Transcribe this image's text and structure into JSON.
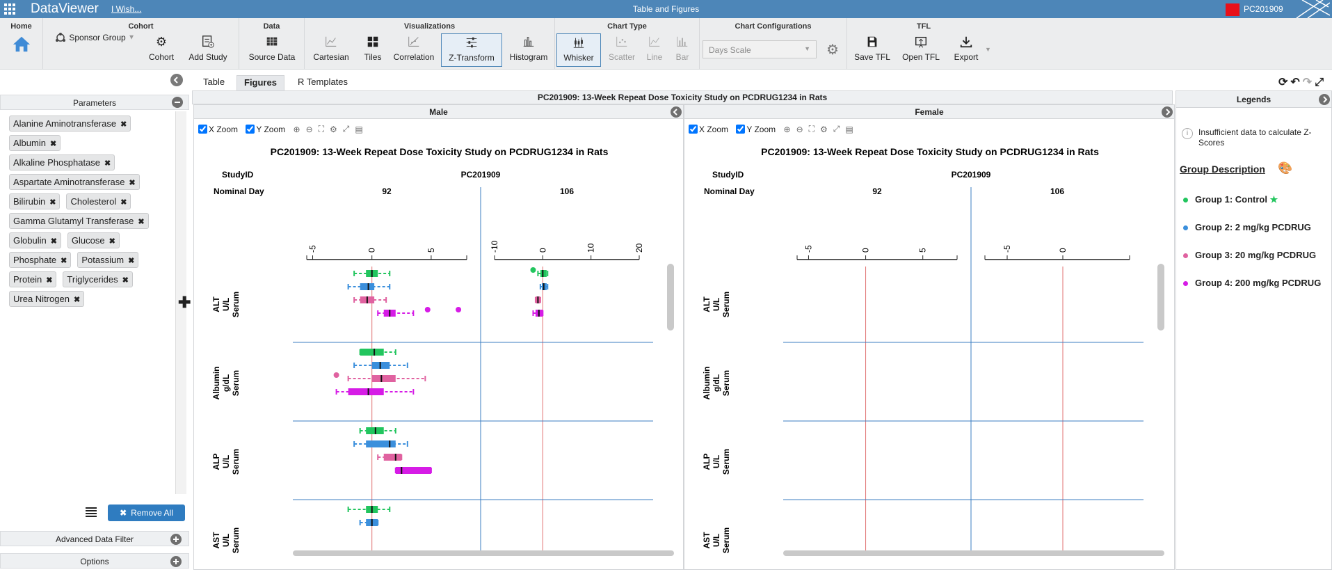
{
  "app": {
    "title": "DataViewer",
    "wish_link": "I Wish...",
    "center_title": "Table and Figures",
    "study_badge": "PC201909",
    "badge_color": "#e8101a"
  },
  "ribbon": {
    "home": {
      "title": "Home"
    },
    "cohort": {
      "title": "Cohort",
      "sponsor": "Sponsor Group",
      "cohort_btn": "Cohort",
      "add_study": "Add Study"
    },
    "data": {
      "title": "Data",
      "source": "Source Data"
    },
    "visualizations": {
      "title": "Visualizations",
      "items": [
        "Cartesian",
        "Tiles",
        "Correlation",
        "Z-Transform",
        "Histogram"
      ]
    },
    "chart_type": {
      "title": "Chart Type",
      "items": [
        "Whisker",
        "Scatter",
        "Line",
        "Bar"
      ]
    },
    "chart_config": {
      "title": "Chart Configurations",
      "select_value": "Days Scale"
    },
    "tfl": {
      "title": "TFL",
      "save": "Save TFL",
      "open": "Open TFL",
      "export": "Export"
    }
  },
  "left": {
    "parameters_title": "Parameters",
    "parameters": [
      "Alanine Aminotransferase",
      "Albumin",
      "Alkaline Phosphatase",
      "Aspartate Aminotransferase",
      "Bilirubin",
      "Cholesterol",
      "Gamma Glutamyl Transferase",
      "Globulin",
      "Glucose",
      "Phosphate",
      "Potassium",
      "Protein",
      "Triglycerides",
      "Urea Nitrogen"
    ],
    "remove_all": "Remove All",
    "advanced_filter": "Advanced Data Filter",
    "options": "Options"
  },
  "tabs": [
    "Table",
    "Figures",
    "R Templates"
  ],
  "chart_header": "PC201909: 13-Week Repeat Dose Toxicity Study on PCDRUG1234 in Rats",
  "zoom": {
    "x": "X Zoom",
    "y": "Y Zoom"
  },
  "legend": {
    "title": "Legends",
    "warning": "Insufficient data to calculate Z-Scores",
    "group_desc": "Group Description",
    "groups": [
      {
        "label": "Group 1: Control",
        "color": "#22c55e"
      },
      {
        "label": "Group 2: 2 mg/kg PCDRUG",
        "color": "#3b8fdc"
      },
      {
        "label": "Group 3: 20 mg/kg PCDRUG",
        "color": "#e062a0"
      },
      {
        "label": "Group 4: 200 mg/kg PCDRUG",
        "color": "#d61ce6"
      }
    ]
  },
  "chart_data": [
    {
      "type": "box",
      "facet": "Male",
      "title": "PC201909: 13-Week Repeat Dose Toxicity Study on PCDRUG1234 in Rats",
      "row_header_labels": [
        "StudyID",
        "Nominal Day"
      ],
      "study": "PC201909",
      "days": [
        "92",
        "106"
      ],
      "axes": [
        {
          "ticks": [
            "-5",
            "0",
            "5"
          ],
          "xlim": [
            -5.5,
            8
          ]
        },
        {
          "ticks": [
            "-10",
            "0",
            "10",
            "20"
          ],
          "xlim": [
            -10,
            20
          ]
        }
      ],
      "parameters": [
        {
          "label": [
            "ALT",
            "U/L",
            "Serum"
          ],
          "d92": [
            {
              "g": 0,
              "w": [
                -1.5,
                1.5
              ],
              "q": [
                -0.5,
                0.5
              ],
              "m": 0
            },
            {
              "g": 1,
              "w": [
                -2,
                1.5
              ],
              "q": [
                -1,
                0.2
              ],
              "m": -0.3
            },
            {
              "g": 2,
              "w": [
                -1.5,
                1.2
              ],
              "q": [
                -1,
                0.2
              ],
              "m": -0.4
            },
            {
              "g": 3,
              "w": [
                0.5,
                3.5
              ],
              "q": [
                1,
                2
              ],
              "m": 1.5,
              "o": [
                4.7,
                7.3
              ]
            }
          ],
          "d106": [
            {
              "g": 0,
              "w": [
                -1,
                1
              ],
              "q": [
                -0.5,
                0.8
              ],
              "m": 0,
              "o": [
                -2
              ]
            },
            {
              "g": 1,
              "w": [
                -0.5,
                1
              ],
              "q": [
                -0.2,
                0.8
              ],
              "m": 0.2
            },
            {
              "g": 2,
              "w": [
                -1.5,
                -0.5
              ],
              "q": [
                -1.5,
                -0.5
              ],
              "m": -1
            },
            {
              "g": 3,
              "w": [
                -2,
                0
              ],
              "q": [
                -1.5,
                0
              ],
              "m": -0.8
            }
          ]
        },
        {
          "label": [
            "Albumin",
            "g/dL",
            "Serum"
          ],
          "d92": [
            {
              "g": 0,
              "w": [
                -1,
                2
              ],
              "q": [
                -1,
                1
              ],
              "m": 0.2
            },
            {
              "g": 1,
              "w": [
                -1.5,
                3
              ],
              "q": [
                0,
                1.5
              ],
              "m": 0.7
            },
            {
              "g": 2,
              "w": [
                -2,
                4.5
              ],
              "q": [
                0,
                2
              ],
              "m": 0.8,
              "o": [
                -3
              ]
            },
            {
              "g": 3,
              "w": [
                -3,
                3.5
              ],
              "q": [
                -2,
                1
              ],
              "m": -0.3
            }
          ]
        },
        {
          "label": [
            "ALP",
            "U/L",
            "Serum"
          ],
          "d92": [
            {
              "g": 0,
              "w": [
                -1,
                2
              ],
              "q": [
                -0.5,
                1
              ],
              "m": 0.3
            },
            {
              "g": 1,
              "w": [
                -1.5,
                3
              ],
              "q": [
                -0.5,
                2
              ],
              "m": 1.5
            },
            {
              "g": 2,
              "w": [
                0.5,
                2.5
              ],
              "q": [
                1,
                2.5
              ],
              "m": 2
            },
            {
              "g": 3,
              "w": [
                2,
                5
              ],
              "q": [
                2,
                5
              ],
              "m": 2.5
            }
          ]
        },
        {
          "label": [
            "AST",
            "U/L",
            "Serum"
          ],
          "d92": [
            {
              "g": 0,
              "w": [
                -2,
                1.5
              ],
              "q": [
                -0.5,
                0.5
              ],
              "m": 0
            },
            {
              "g": 1,
              "w": [
                -1,
                0.5
              ],
              "q": [
                -0.5,
                0.5
              ],
              "m": 0
            }
          ]
        }
      ]
    },
    {
      "type": "box",
      "facet": "Female",
      "title": "PC201909: 13-Week Repeat Dose Toxicity Study on PCDRUG1234 in Rats",
      "row_header_labels": [
        "StudyID",
        "Nominal Day"
      ],
      "study": "PC201909",
      "days": [
        "92",
        "106"
      ],
      "axes": [
        {
          "ticks": [
            "-5",
            "0",
            "5"
          ],
          "xlim": [
            -6,
            8
          ]
        },
        {
          "ticks": [
            "-5",
            "0"
          ],
          "xlim": [
            -7,
            6
          ]
        }
      ],
      "parameters": [
        {
          "label": [
            "ALT",
            "U/L",
            "Serum"
          ]
        },
        {
          "label": [
            "Albumin",
            "g/dL",
            "Serum"
          ]
        },
        {
          "label": [
            "ALP",
            "U/L",
            "Serum"
          ]
        },
        {
          "label": [
            "AST",
            "U/L",
            "Serum"
          ]
        }
      ]
    }
  ]
}
